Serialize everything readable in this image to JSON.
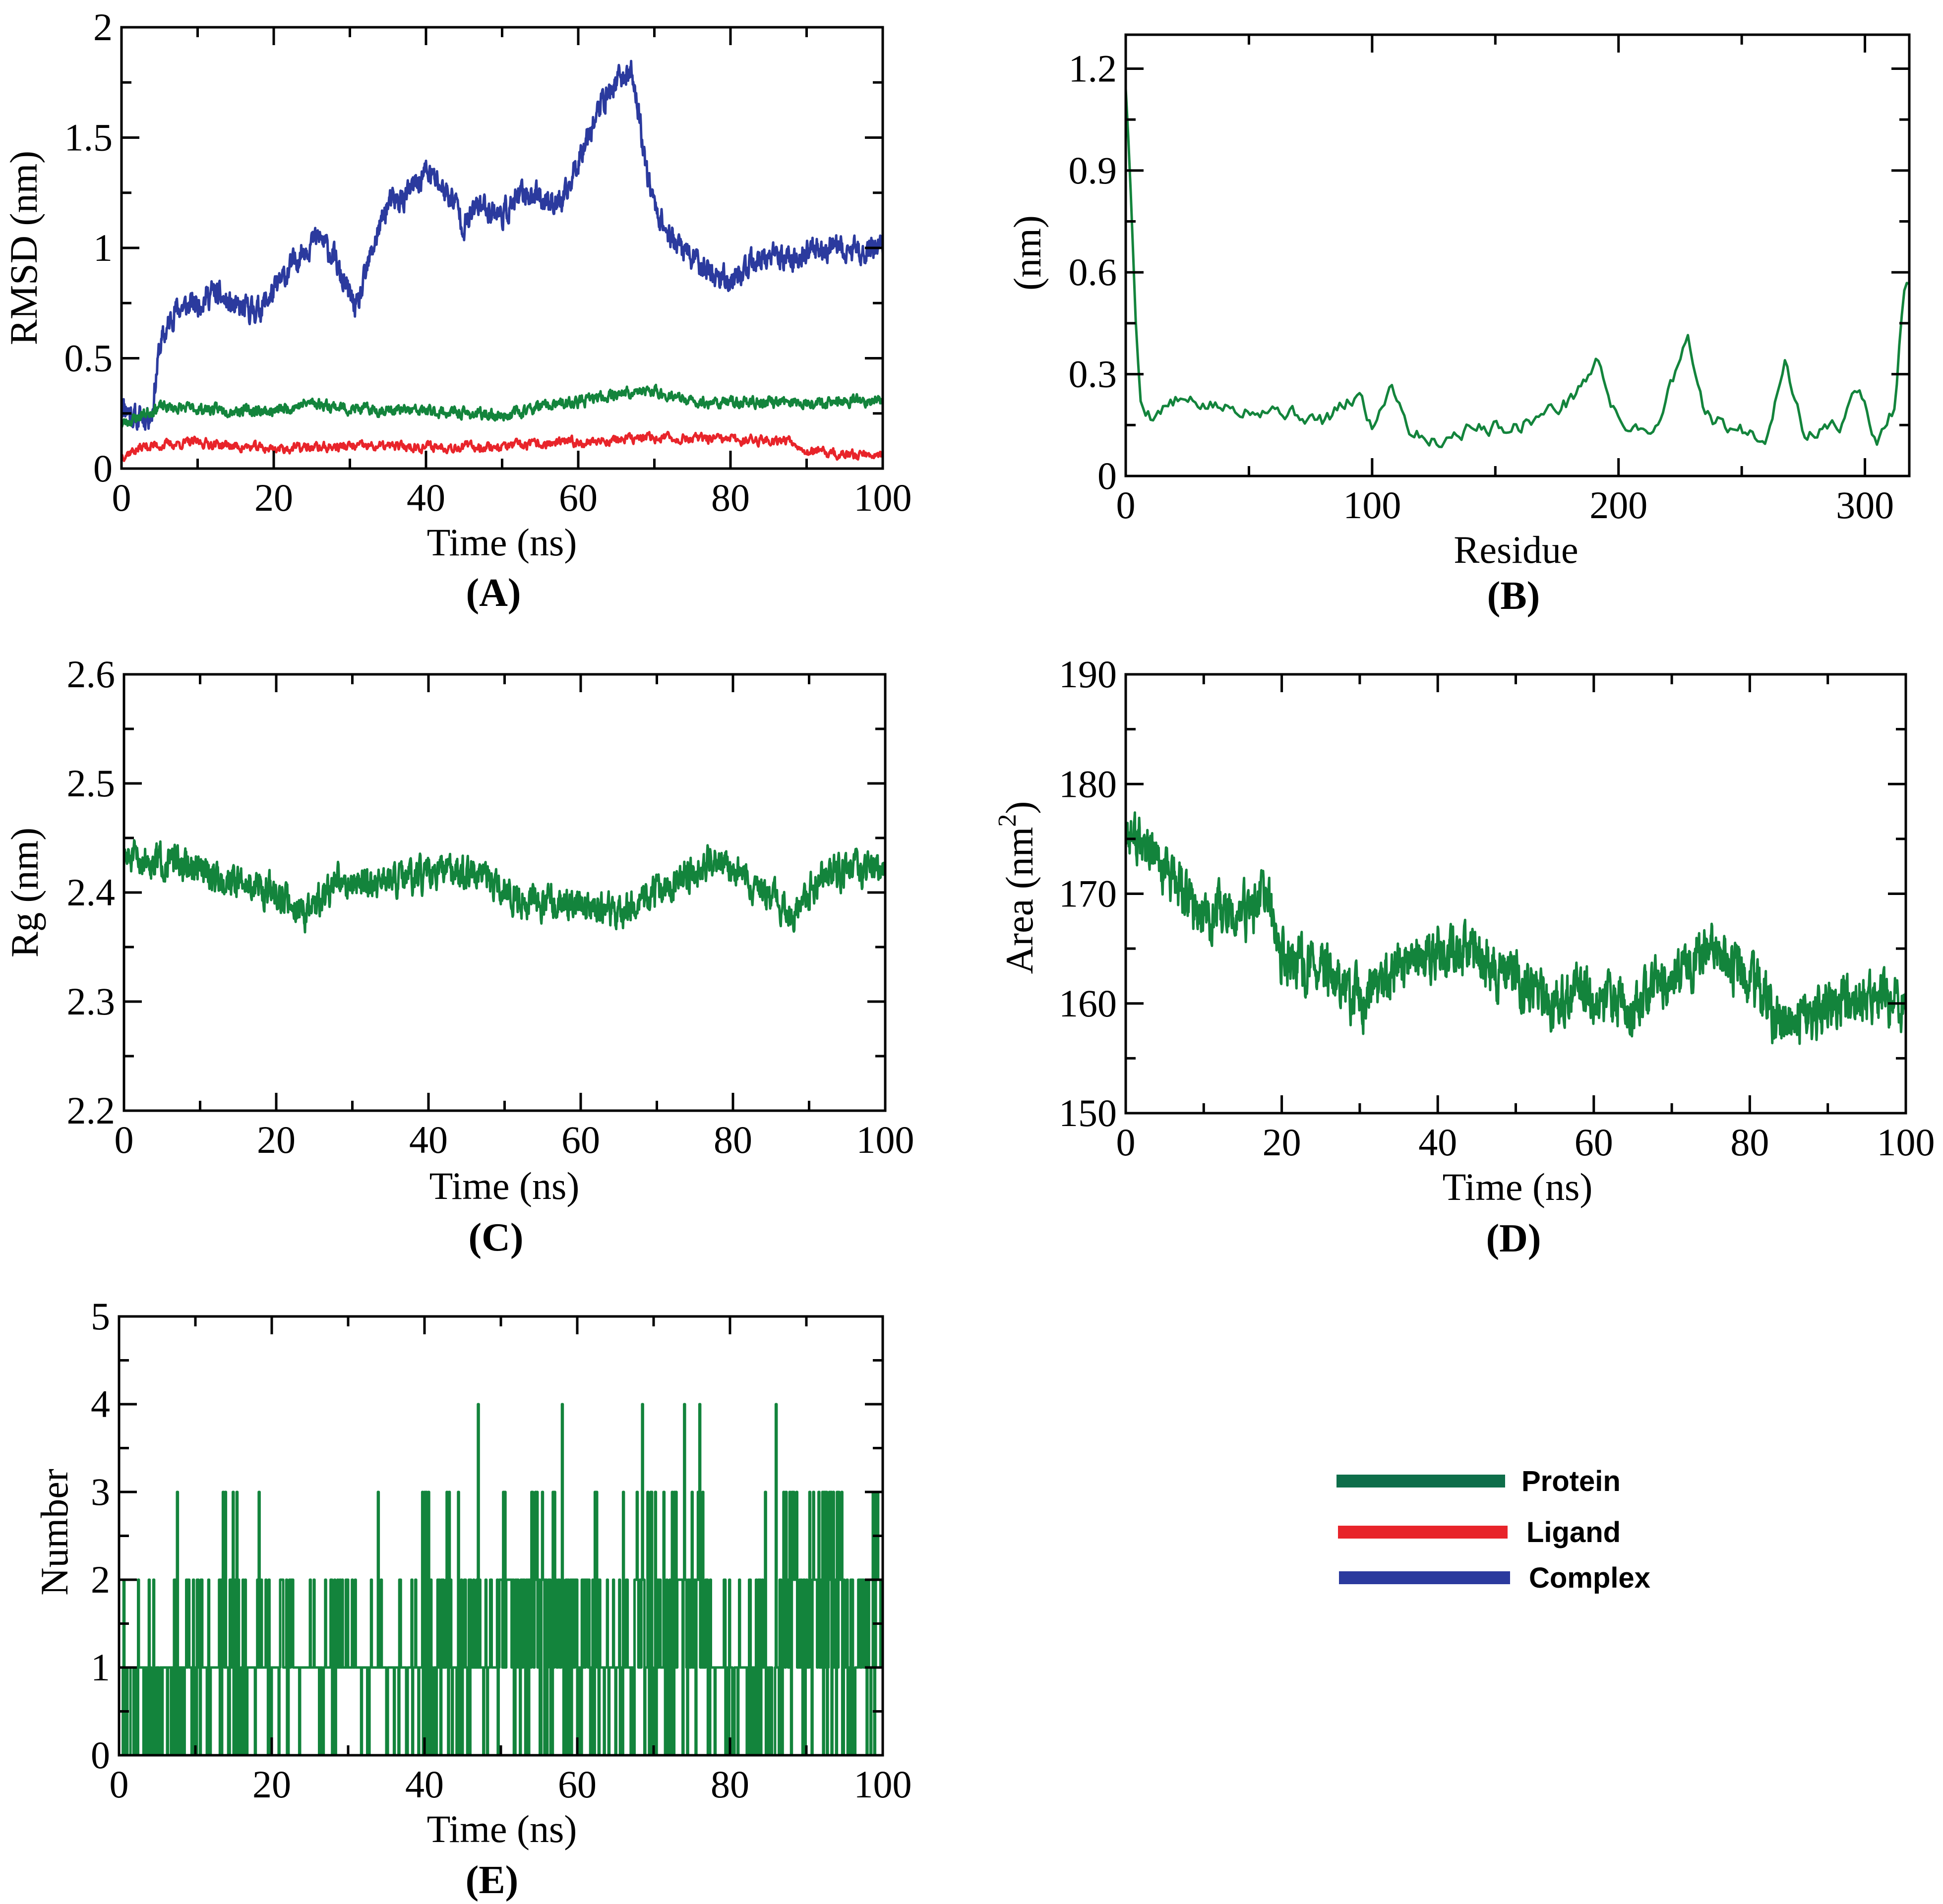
{
  "colors": {
    "protein": "#13843c",
    "ligand": "#e8242a",
    "complex": "#2b3a9e",
    "legend_protein": "#0e6e4a"
  },
  "legend": {
    "protein_label": "Protein",
    "ligand_label": "Ligand",
    "complex_label": "Complex"
  },
  "chart_data": [
    {
      "id": "A",
      "panel_label": "(A)",
      "type": "line",
      "xlabel": "Time (ns)",
      "ylabel": "RMSD (nm)",
      "xlim": [
        0,
        100
      ],
      "ylim": [
        0,
        2
      ],
      "xticks": [
        0,
        20,
        40,
        60,
        80,
        100
      ],
      "xtick_labels": [
        "0",
        "20",
        "40",
        "60",
        "80",
        "100"
      ],
      "yticks": [
        0,
        0.5,
        1,
        1.5,
        2
      ],
      "ytick_labels": [
        "0",
        "0.5",
        "1",
        "1.5",
        "2"
      ],
      "series": [
        {
          "name": "Complex",
          "color_key": "complex",
          "n": 1800,
          "seed": 11,
          "noise": 0.045,
          "keypoints": [
            [
              0,
              0.3
            ],
            [
              2,
              0.22
            ],
            [
              4,
              0.25
            ],
            [
              5,
              0.55
            ],
            [
              7,
              0.72
            ],
            [
              10,
              0.75
            ],
            [
              12,
              0.8
            ],
            [
              15,
              0.72
            ],
            [
              18,
              0.72
            ],
            [
              20,
              0.8
            ],
            [
              22,
              0.9
            ],
            [
              24,
              1.0
            ],
            [
              26,
              1.05
            ],
            [
              28,
              0.95
            ],
            [
              29,
              0.85
            ],
            [
              30,
              0.78
            ],
            [
              31,
              0.72
            ],
            [
              33,
              1.0
            ],
            [
              35,
              1.2
            ],
            [
              37,
              1.22
            ],
            [
              39,
              1.3
            ],
            [
              40,
              1.35
            ],
            [
              42,
              1.28
            ],
            [
              44,
              1.2
            ],
            [
              45,
              1.1
            ],
            [
              47,
              1.2
            ],
            [
              50,
              1.15
            ],
            [
              53,
              1.25
            ],
            [
              56,
              1.22
            ],
            [
              58,
              1.2
            ],
            [
              59,
              1.3
            ],
            [
              61,
              1.5
            ],
            [
              63,
              1.65
            ],
            [
              65,
              1.75
            ],
            [
              67,
              1.8
            ],
            [
              68,
              1.6
            ],
            [
              69,
              1.35
            ],
            [
              70,
              1.2
            ],
            [
              72,
              1.05
            ],
            [
              75,
              0.95
            ],
            [
              78,
              0.88
            ],
            [
              80,
              0.85
            ],
            [
              84,
              0.95
            ],
            [
              88,
              0.95
            ],
            [
              92,
              1.0
            ],
            [
              96,
              0.98
            ],
            [
              100,
              1.02
            ]
          ]
        },
        {
          "name": "Protein",
          "color_key": "protein",
          "n": 1500,
          "seed": 23,
          "noise": 0.02,
          "keypoints": [
            [
              0,
              0.2
            ],
            [
              5,
              0.28
            ],
            [
              10,
              0.27
            ],
            [
              20,
              0.26
            ],
            [
              25,
              0.3
            ],
            [
              30,
              0.27
            ],
            [
              40,
              0.26
            ],
            [
              50,
              0.24
            ],
            [
              55,
              0.28
            ],
            [
              60,
              0.3
            ],
            [
              65,
              0.34
            ],
            [
              70,
              0.35
            ],
            [
              75,
              0.3
            ],
            [
              80,
              0.3
            ],
            [
              90,
              0.3
            ],
            [
              100,
              0.31
            ]
          ]
        },
        {
          "name": "Ligand",
          "color_key": "ligand",
          "n": 1200,
          "seed": 37,
          "noise": 0.018,
          "keypoints": [
            [
              0,
              0.06
            ],
            [
              3,
              0.1
            ],
            [
              10,
              0.12
            ],
            [
              15,
              0.1
            ],
            [
              20,
              0.09
            ],
            [
              30,
              0.1
            ],
            [
              40,
              0.1
            ],
            [
              50,
              0.1
            ],
            [
              60,
              0.12
            ],
            [
              65,
              0.13
            ],
            [
              70,
              0.14
            ],
            [
              80,
              0.13
            ],
            [
              88,
              0.13
            ],
            [
              90,
              0.08
            ],
            [
              95,
              0.06
            ],
            [
              100,
              0.07
            ]
          ]
        }
      ]
    },
    {
      "id": "B",
      "panel_label": "(B)",
      "type": "line",
      "xlabel": "Residue",
      "ylabel": "(nm)",
      "xlim": [
        0,
        318
      ],
      "ylim": [
        0,
        1.3
      ],
      "xticks": [
        0,
        100,
        200,
        300
      ],
      "xtick_labels": [
        "0",
        "100",
        "200",
        "300"
      ],
      "yticks": [
        0,
        0.3,
        0.6,
        0.9,
        1.2
      ],
      "ytick_labels": [
        "0",
        "0.3",
        "0.6",
        "0.9",
        "1.2"
      ],
      "series": [
        {
          "name": "Protein",
          "color_key": "protein",
          "n": 315,
          "seed": 5,
          "noise": 0.018,
          "keypoints": [
            [
              0,
              1.15
            ],
            [
              2,
              0.85
            ],
            [
              4,
              0.45
            ],
            [
              6,
              0.22
            ],
            [
              10,
              0.18
            ],
            [
              20,
              0.22
            ],
            [
              40,
              0.2
            ],
            [
              60,
              0.2
            ],
            [
              80,
              0.16
            ],
            [
              95,
              0.24
            ],
            [
              100,
              0.14
            ],
            [
              108,
              0.28
            ],
            [
              115,
              0.14
            ],
            [
              125,
              0.1
            ],
            [
              140,
              0.14
            ],
            [
              160,
              0.15
            ],
            [
              180,
              0.22
            ],
            [
              192,
              0.34
            ],
            [
              200,
              0.15
            ],
            [
              215,
              0.14
            ],
            [
              228,
              0.4
            ],
            [
              235,
              0.18
            ],
            [
              245,
              0.14
            ],
            [
              260,
              0.12
            ],
            [
              268,
              0.34
            ],
            [
              275,
              0.12
            ],
            [
              290,
              0.15
            ],
            [
              297,
              0.26
            ],
            [
              305,
              0.1
            ],
            [
              312,
              0.2
            ],
            [
              316,
              0.56
            ]
          ]
        }
      ]
    },
    {
      "id": "C",
      "panel_label": "(C)",
      "type": "line",
      "xlabel": "Time (ns)",
      "ylabel": "Rg (nm)",
      "xlim": [
        0,
        100
      ],
      "ylim": [
        2.2,
        2.6
      ],
      "xticks": [
        0,
        20,
        40,
        60,
        80,
        100
      ],
      "xtick_labels": [
        "0",
        "20",
        "40",
        "60",
        "80",
        "100"
      ],
      "yticks": [
        2.2,
        2.3,
        2.4,
        2.5,
        2.6
      ],
      "ytick_labels": [
        "2.2",
        "2.3",
        "2.4",
        "2.5",
        "2.6"
      ],
      "series": [
        {
          "name": "Protein",
          "color_key": "protein",
          "n": 1800,
          "seed": 51,
          "noise": 0.012,
          "keypoints": [
            [
              0,
              2.43
            ],
            [
              5,
              2.43
            ],
            [
              10,
              2.42
            ],
            [
              15,
              2.41
            ],
            [
              20,
              2.4
            ],
            [
              24,
              2.38
            ],
            [
              28,
              2.41
            ],
            [
              35,
              2.41
            ],
            [
              45,
              2.42
            ],
            [
              50,
              2.4
            ],
            [
              55,
              2.39
            ],
            [
              60,
              2.39
            ],
            [
              65,
              2.38
            ],
            [
              70,
              2.4
            ],
            [
              78,
              2.43
            ],
            [
              82,
              2.41
            ],
            [
              88,
              2.38
            ],
            [
              92,
              2.42
            ],
            [
              100,
              2.42
            ]
          ]
        }
      ]
    },
    {
      "id": "D",
      "panel_label": "(D)",
      "type": "line",
      "xlabel": "Time (ns)",
      "ylabel": "Area (nm",
      "ylabel_sup": "2",
      "ylabel_close": ")",
      "xlim": [
        0,
        100
      ],
      "ylim": [
        150,
        190
      ],
      "xticks": [
        0,
        20,
        40,
        60,
        80,
        100
      ],
      "xtick_labels": [
        "0",
        "20",
        "40",
        "60",
        "80",
        "100"
      ],
      "yticks": [
        150,
        160,
        170,
        180,
        190
      ],
      "ytick_labels": [
        "150",
        "160",
        "170",
        "180",
        "190"
      ],
      "series": [
        {
          "name": "Protein",
          "color_key": "protein",
          "n": 1800,
          "seed": 77,
          "noise": 1.9,
          "keypoints": [
            [
              0,
              176
            ],
            [
              5,
              172
            ],
            [
              10,
              168
            ],
            [
              15,
              168
            ],
            [
              18,
              170
            ],
            [
              20,
              164
            ],
            [
              25,
              163
            ],
            [
              30,
              160
            ],
            [
              35,
              163
            ],
            [
              40,
              165
            ],
            [
              45,
              164
            ],
            [
              50,
              162
            ],
            [
              55,
              160
            ],
            [
              60,
              161
            ],
            [
              65,
              160
            ],
            [
              70,
              163
            ],
            [
              75,
              165
            ],
            [
              80,
              162
            ],
            [
              84,
              158
            ],
            [
              88,
              159
            ],
            [
              94,
              161
            ],
            [
              100,
              160
            ]
          ]
        }
      ]
    },
    {
      "id": "E",
      "panel_label": "(E)",
      "type": "line",
      "xlabel": "Time (ns)",
      "ylabel": "Number",
      "xlim": [
        0,
        100
      ],
      "ylim": [
        0,
        5
      ],
      "xticks": [
        0,
        20,
        40,
        60,
        80,
        100
      ],
      "xtick_labels": [
        "0",
        "20",
        "40",
        "60",
        "80",
        "100"
      ],
      "yticks": [
        0,
        1,
        2,
        3,
        4,
        5
      ],
      "ytick_labels": [
        "0",
        "1",
        "2",
        "3",
        "4",
        "5"
      ],
      "series": [
        {
          "name": "Protein",
          "color_key": "protein",
          "discrete": true,
          "n": 1000,
          "seed": 99,
          "note": "integer counts (0-4) of hydrogen bonds over time; values concentrated at 0-2, occasional 3-4 peaks near 47, 58, 68, 72, 75, 86 ns",
          "peaks4": [
            47,
            58,
            68.5,
            74,
            76,
            86
          ],
          "segments": [
            [
              0,
              7,
              0.55,
              0.08,
              0.0
            ],
            [
              7,
              16,
              0.45,
              0.25,
              0.06
            ],
            [
              16,
              40,
              0.7,
              0.12,
              0.01
            ],
            [
              40,
              50,
              0.45,
              0.3,
              0.05
            ],
            [
              50,
              63,
              0.3,
              0.45,
              0.08
            ],
            [
              63,
              67,
              0.6,
              0.2,
              0.02
            ],
            [
              67,
              77,
              0.35,
              0.35,
              0.12
            ],
            [
              77,
              87,
              0.65,
              0.1,
              0.01
            ],
            [
              87,
              100,
              0.35,
              0.35,
              0.15
            ]
          ]
        }
      ]
    }
  ]
}
